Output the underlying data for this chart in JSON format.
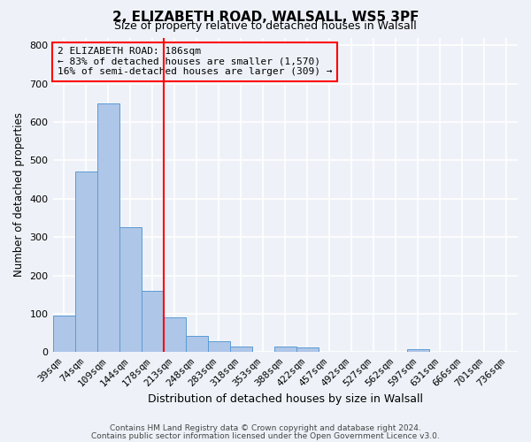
{
  "title": "2, ELIZABETH ROAD, WALSALL, WS5 3PF",
  "subtitle": "Size of property relative to detached houses in Walsall",
  "xlabel": "Distribution of detached houses by size in Walsall",
  "ylabel": "Number of detached properties",
  "bar_labels": [
    "39sqm",
    "74sqm",
    "109sqm",
    "144sqm",
    "178sqm",
    "213sqm",
    "248sqm",
    "283sqm",
    "318sqm",
    "353sqm",
    "388sqm",
    "422sqm",
    "457sqm",
    "492sqm",
    "527sqm",
    "562sqm",
    "597sqm",
    "631sqm",
    "666sqm",
    "701sqm",
    "736sqm"
  ],
  "bar_values": [
    95,
    470,
    648,
    325,
    160,
    90,
    42,
    28,
    14,
    2,
    15,
    12,
    2,
    0,
    0,
    0,
    8,
    0,
    0,
    0,
    0
  ],
  "bar_color": "#aec6e8",
  "bar_edgecolor": "#5b9bd5",
  "vline_x": 4.5,
  "vline_color": "red",
  "annotation_title": "2 ELIZABETH ROAD: 186sqm",
  "annotation_line1": "← 83% of detached houses are smaller (1,570)",
  "annotation_line2": "16% of semi-detached houses are larger (309) →",
  "annotation_box_color": "red",
  "ylim": [
    0,
    820
  ],
  "yticks": [
    0,
    100,
    200,
    300,
    400,
    500,
    600,
    700,
    800
  ],
  "footer1": "Contains HM Land Registry data © Crown copyright and database right 2024.",
  "footer2": "Contains public sector information licensed under the Open Government Licence v3.0.",
  "bg_color": "#eef2f8",
  "grid_color": "white",
  "title_fontsize": 11,
  "subtitle_fontsize": 9,
  "xlabel_fontsize": 9,
  "ylabel_fontsize": 8.5,
  "tick_fontsize": 8,
  "annotation_fontsize": 8
}
